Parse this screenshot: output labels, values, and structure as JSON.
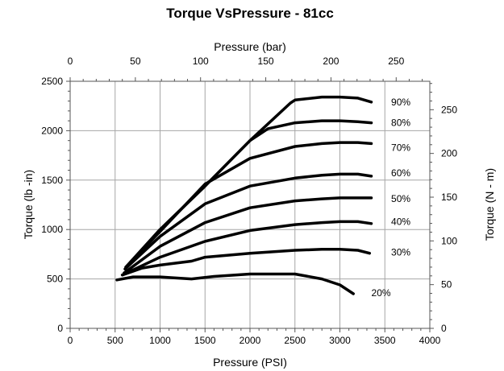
{
  "chart_data": {
    "type": "line",
    "title": "Torque VsPressure - 81cc",
    "xlabel": "Pressure (PSI)",
    "ylabel": "Torque (lb -in)",
    "x2label": "Pressure (bar)",
    "y2label": "Torque (N - m)",
    "xlim": [
      0,
      4000
    ],
    "ylim": [
      0,
      2500
    ],
    "x2lim": [
      0,
      275.8
    ],
    "y2lim": [
      0,
      282.5
    ],
    "xticks": [
      "0",
      "500",
      "1000",
      "1500",
      "2000",
      "2500",
      "3000",
      "3500",
      "4000"
    ],
    "yticks": [
      "0",
      "500",
      "1000",
      "1500",
      "2000",
      "2500"
    ],
    "x2ticks": [
      "0",
      "50",
      "100",
      "150",
      "200",
      "250"
    ],
    "y2ticks": [
      "0",
      "50",
      "100",
      "150",
      "200",
      "250"
    ],
    "grid": true,
    "colors": {
      "line": "#000000",
      "grid": "#a6a6a6"
    },
    "series": [
      {
        "name": "90%",
        "x": [
          620,
          1000,
          1500,
          2000,
          2450,
          2500,
          2800,
          3000,
          3200,
          3350
        ],
        "y": [
          620,
          1000,
          1440,
          1900,
          2280,
          2310,
          2340,
          2340,
          2330,
          2290
        ]
      },
      {
        "name": "80%",
        "x": [
          620,
          1000,
          1500,
          2000,
          2200,
          2500,
          2800,
          3000,
          3200,
          3350
        ],
        "y": [
          620,
          1000,
          1440,
          1900,
          2020,
          2080,
          2100,
          2100,
          2090,
          2080
        ]
      },
      {
        "name": "70%",
        "x": [
          620,
          1000,
          1500,
          2000,
          2500,
          2800,
          3000,
          3200,
          3350
        ],
        "y": [
          620,
          980,
          1460,
          1720,
          1840,
          1870,
          1880,
          1880,
          1870
        ]
      },
      {
        "name": "60%",
        "x": [
          610,
          1000,
          1500,
          2000,
          2500,
          2800,
          3000,
          3200,
          3350
        ],
        "y": [
          600,
          930,
          1260,
          1440,
          1520,
          1550,
          1560,
          1560,
          1540
        ]
      },
      {
        "name": "50%",
        "x": [
          600,
          1000,
          1500,
          2000,
          2500,
          2800,
          3000,
          3200,
          3350
        ],
        "y": [
          560,
          830,
          1070,
          1220,
          1290,
          1310,
          1320,
          1320,
          1320
        ]
      },
      {
        "name": "40%",
        "x": [
          580,
          1000,
          1500,
          2000,
          2500,
          2800,
          3000,
          3200,
          3350
        ],
        "y": [
          540,
          720,
          880,
          990,
          1050,
          1070,
          1080,
          1080,
          1060
        ]
      },
      {
        "name": "30%",
        "x": [
          580,
          800,
          1000,
          1350,
          1500,
          2000,
          2500,
          2800,
          3000,
          3200,
          3330
        ],
        "y": [
          540,
          610,
          640,
          680,
          720,
          760,
          790,
          800,
          800,
          790,
          760
        ]
      },
      {
        "name": "20%",
        "x": [
          520,
          700,
          1000,
          1350,
          1600,
          2000,
          2500,
          2800,
          3000,
          3150
        ],
        "y": [
          490,
          520,
          520,
          500,
          525,
          550,
          550,
          500,
          440,
          350
        ]
      }
    ],
    "series_labels": [
      {
        "name": "90%",
        "x": 3570,
        "y": 2290
      },
      {
        "name": "80%",
        "x": 3570,
        "y": 2080
      },
      {
        "name": "70%",
        "x": 3570,
        "y": 1830
      },
      {
        "name": "60%",
        "x": 3570,
        "y": 1570
      },
      {
        "name": "50%",
        "x": 3570,
        "y": 1310
      },
      {
        "name": "40%",
        "x": 3570,
        "y": 1080
      },
      {
        "name": "30%",
        "x": 3570,
        "y": 770
      },
      {
        "name": "20%",
        "x": 3350,
        "y": 360
      }
    ]
  }
}
